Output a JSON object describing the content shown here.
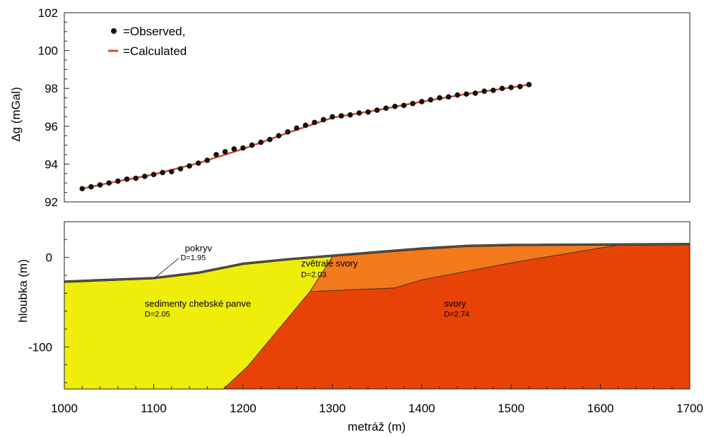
{
  "chart_data": [
    {
      "type": "scatter",
      "ylabel": "Δg (mGal)",
      "xlim": [
        1000,
        1700
      ],
      "ylim": [
        92,
        102
      ],
      "y_ticks": [
        "92",
        "94",
        "96",
        "98",
        "100",
        "102"
      ],
      "legend": {
        "position": "top-left",
        "observed_label": "=Observed,",
        "calculated_label": "=Calculated"
      },
      "colors": {
        "observed": "#111111",
        "calculated": "#d84a2e"
      },
      "series": [
        {
          "name": "=Observed,",
          "x": [
            1020,
            1030,
            1040,
            1050,
            1060,
            1070,
            1080,
            1090,
            1100,
            1110,
            1120,
            1130,
            1140,
            1150,
            1160,
            1170,
            1180,
            1190,
            1200,
            1210,
            1220,
            1230,
            1240,
            1250,
            1260,
            1270,
            1280,
            1290,
            1300,
            1310,
            1320,
            1330,
            1340,
            1350,
            1360,
            1370,
            1380,
            1390,
            1400,
            1410,
            1420,
            1430,
            1440,
            1450,
            1460,
            1470,
            1480,
            1490,
            1500,
            1510,
            1520
          ],
          "y": [
            92.7,
            92.8,
            92.9,
            93.0,
            93.1,
            93.2,
            93.25,
            93.35,
            93.45,
            93.55,
            93.6,
            93.75,
            93.9,
            94.05,
            94.2,
            94.5,
            94.65,
            94.8,
            94.85,
            95.0,
            95.15,
            95.3,
            95.5,
            95.7,
            95.9,
            96.05,
            96.2,
            96.35,
            96.5,
            96.55,
            96.6,
            96.7,
            96.75,
            96.85,
            96.95,
            97.05,
            97.1,
            97.2,
            97.3,
            97.4,
            97.5,
            97.55,
            97.65,
            97.7,
            97.75,
            97.85,
            97.9,
            98.0,
            98.05,
            98.1,
            98.2
          ]
        },
        {
          "name": "=Calculated",
          "x": [
            1020,
            1050,
            1100,
            1150,
            1200,
            1250,
            1300,
            1350,
            1400,
            1450,
            1500,
            1520
          ],
          "y": [
            92.7,
            93.0,
            93.45,
            94.05,
            94.8,
            95.65,
            96.45,
            96.85,
            97.3,
            97.7,
            98.05,
            98.2
          ]
        }
      ]
    },
    {
      "type": "area",
      "xlabel": "metráž (m)",
      "ylabel": "hloubka (m)",
      "xlim": [
        1000,
        1700
      ],
      "ylim": [
        -147,
        40
      ],
      "x_ticks": [
        "1000",
        "1100",
        "1200",
        "1300",
        "1400",
        "1500",
        "1600",
        "1700"
      ],
      "y_ticks": [
        "-100",
        "0"
      ],
      "layers": [
        {
          "name": "sedimenty chebské panve",
          "label": "sedimenty chebské panve",
          "density_label": "D=2.05",
          "color": "#eeee0a",
          "label_at": [
            1090,
            -55
          ],
          "density_at": [
            1090,
            -66
          ],
          "polygon": [
            [
              1000,
              -28
            ],
            [
              1100,
              -24
            ],
            [
              1150,
              -18
            ],
            [
              1200,
              -8
            ],
            [
              1250,
              -3
            ],
            [
              1300,
              1
            ],
            [
              1275,
              -38
            ],
            [
              1240,
              -80
            ],
            [
              1205,
              -122
            ],
            [
              1178,
              -147
            ],
            [
              1000,
              -147
            ]
          ]
        },
        {
          "name": "svory",
          "label": "svory",
          "density_label": "D=2.74",
          "color": "#e84307",
          "label_at": [
            1425,
            -55
          ],
          "density_at": [
            1425,
            -66
          ],
          "polygon": [
            [
              1178,
              -147
            ],
            [
              1205,
              -122
            ],
            [
              1240,
              -80
            ],
            [
              1275,
              -38
            ],
            [
              1370,
              -34
            ],
            [
              1400,
              -25
            ],
            [
              1500,
              -6
            ],
            [
              1620,
              14
            ],
            [
              1700,
              14
            ],
            [
              1700,
              -147
            ]
          ]
        },
        {
          "name": "zvětralé svory",
          "label": "zvětralé svory",
          "density_label": "D=2.03",
          "color": "#f27a1c",
          "label_at": [
            1265,
            -10
          ],
          "density_at": [
            1265,
            -22
          ],
          "polygon": [
            [
              1275,
              -38
            ],
            [
              1300,
              1
            ],
            [
              1350,
              5
            ],
            [
              1400,
              9
            ],
            [
              1450,
              12
            ],
            [
              1500,
              13
            ],
            [
              1620,
              14
            ],
            [
              1500,
              -6
            ],
            [
              1400,
              -25
            ],
            [
              1370,
              -34
            ]
          ]
        },
        {
          "name": "pokryv",
          "label": "pokryv",
          "density_label": "D=1.95",
          "color": "#555555",
          "label_at": [
            1135,
            7
          ],
          "density_at": [
            1130,
            -3
          ],
          "leader": [
            [
              1100,
              -24
            ],
            [
              1128,
              -1
            ]
          ],
          "polygon": [
            [
              1000,
              -28
            ],
            [
              1100,
              -24
            ],
            [
              1150,
              -18
            ],
            [
              1200,
              -8
            ],
            [
              1250,
              -3
            ],
            [
              1300,
              1
            ],
            [
              1350,
              5
            ],
            [
              1400,
              9
            ],
            [
              1450,
              12
            ],
            [
              1500,
              13
            ],
            [
              1700,
              14
            ],
            [
              1700,
              16
            ],
            [
              1500,
              15
            ],
            [
              1450,
              14
            ],
            [
              1400,
              11
            ],
            [
              1350,
              7
            ],
            [
              1300,
              3
            ],
            [
              1250,
              -1
            ],
            [
              1200,
              -6
            ],
            [
              1150,
              -16
            ],
            [
              1100,
              -22
            ],
            [
              1000,
              -26
            ]
          ]
        }
      ]
    }
  ]
}
